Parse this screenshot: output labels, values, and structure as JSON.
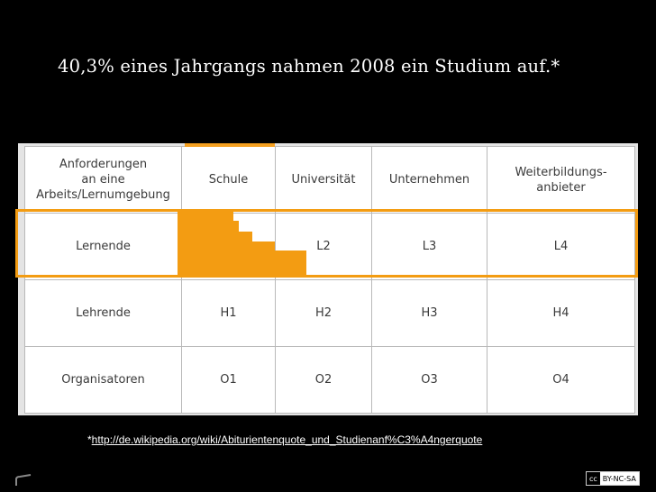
{
  "slide": {
    "title": "40,3% eines Jahrgangs nahmen 2008 ein Studium auf.*",
    "footnote_star": "*",
    "footnote_link": "http://de.wikipedia.org/wiki/Abiturientenquote_und_Studienanf%C3%A4ngerquote",
    "license": {
      "cc": "cc",
      "text": "BY-NC-SA"
    }
  },
  "table": {
    "header": {
      "col0_lines": [
        "Anforderungen",
        "an eine",
        "Arbeits/Lernumgebung"
      ],
      "cols": [
        "Schule",
        "Universität",
        "Unternehmen",
        "Weiterbildungs- anbieter"
      ]
    },
    "rows": [
      {
        "label": "Lernende",
        "cells": [
          "",
          "L2",
          "L3",
          "L4"
        ]
      },
      {
        "label": "Lehrende",
        "cells": [
          "H1",
          "H2",
          "H3",
          "H4"
        ]
      },
      {
        "label": "Organisatoren",
        "cells": [
          "O1",
          "O2",
          "O3",
          "O4"
        ]
      }
    ]
  },
  "colors": {
    "highlight": "#f39c12",
    "background": "#000000"
  }
}
